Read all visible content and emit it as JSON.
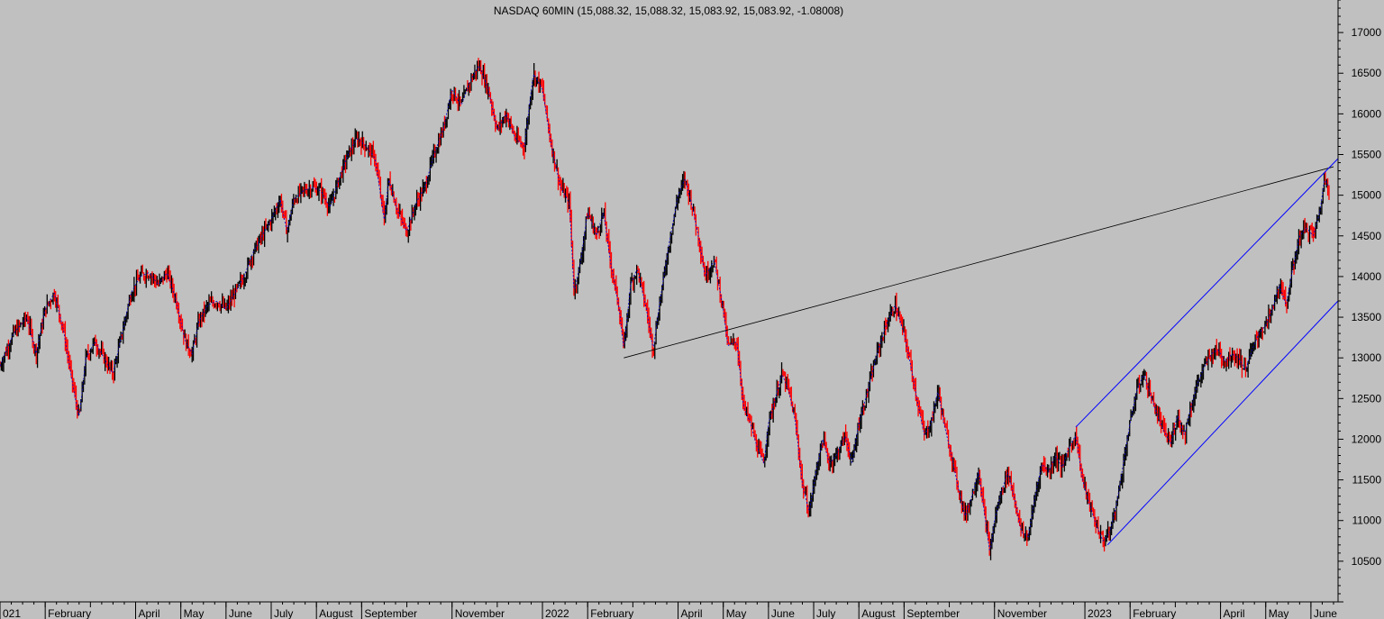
{
  "chart_data": {
    "type": "line",
    "title": "NASDAQ 60MIN (15,088.32, 15,088.32, 15,083.92, 15,083.92, -1.08008)",
    "ylim": [
      10000,
      17400
    ],
    "yticks": [
      10500,
      11000,
      11500,
      12000,
      12500,
      13000,
      13500,
      14000,
      14500,
      15000,
      15500,
      16000,
      16500,
      17000
    ],
    "x_tick_labels": [
      {
        "label": "021",
        "pos": 0.0
      },
      {
        "label": "February",
        "pos": 1.0
      },
      {
        "label": "April",
        "pos": 3.0
      },
      {
        "label": "May",
        "pos": 4.0
      },
      {
        "label": "June",
        "pos": 5.0
      },
      {
        "label": "July",
        "pos": 6.0
      },
      {
        "label": "August",
        "pos": 7.0
      },
      {
        "label": "September",
        "pos": 8.0
      },
      {
        "label": "November",
        "pos": 10.0
      },
      {
        "label": "2022",
        "pos": 12.0
      },
      {
        "label": "February",
        "pos": 13.0
      },
      {
        "label": "April",
        "pos": 15.0
      },
      {
        "label": "May",
        "pos": 16.0
      },
      {
        "label": "June",
        "pos": 17.0
      },
      {
        "label": "July",
        "pos": 18.0
      },
      {
        "label": "August",
        "pos": 19.0
      },
      {
        "label": "September",
        "pos": 20.0
      },
      {
        "label": "November",
        "pos": 22.0
      },
      {
        "label": "2023",
        "pos": 24.0
      },
      {
        "label": "February",
        "pos": 25.0
      },
      {
        "label": "April",
        "pos": 27.0
      },
      {
        "label": "May",
        "pos": 28.0
      },
      {
        "label": "June",
        "pos": 29.0
      }
    ],
    "xlim": [
      0,
      29.6
    ],
    "series": [
      {
        "values": [
          [
            0.0,
            12900
          ],
          [
            0.3,
            13300
          ],
          [
            0.6,
            13500
          ],
          [
            0.8,
            13050
          ],
          [
            1.0,
            13600
          ],
          [
            1.2,
            13800
          ],
          [
            1.4,
            13350
          ],
          [
            1.6,
            12700
          ],
          [
            1.75,
            12250
          ],
          [
            1.9,
            13000
          ],
          [
            2.1,
            13200
          ],
          [
            2.3,
            13000
          ],
          [
            2.5,
            12800
          ],
          [
            2.7,
            13300
          ],
          [
            2.9,
            13800
          ],
          [
            3.1,
            14000
          ],
          [
            3.3,
            14050
          ],
          [
            3.5,
            13900
          ],
          [
            3.7,
            14050
          ],
          [
            3.9,
            13700
          ],
          [
            4.1,
            13200
          ],
          [
            4.25,
            13050
          ],
          [
            4.4,
            13450
          ],
          [
            4.6,
            13650
          ],
          [
            4.8,
            13700
          ],
          [
            5.0,
            13600
          ],
          [
            5.2,
            13800
          ],
          [
            5.4,
            14000
          ],
          [
            5.6,
            14300
          ],
          [
            5.8,
            14500
          ],
          [
            6.0,
            14700
          ],
          [
            6.2,
            14950
          ],
          [
            6.35,
            14550
          ],
          [
            6.5,
            14950
          ],
          [
            6.7,
            15050
          ],
          [
            6.9,
            15100
          ],
          [
            7.1,
            15050
          ],
          [
            7.3,
            14850
          ],
          [
            7.5,
            15200
          ],
          [
            7.7,
            15500
          ],
          [
            7.9,
            15700
          ],
          [
            8.1,
            15600
          ],
          [
            8.3,
            15450
          ],
          [
            8.5,
            14700
          ],
          [
            8.6,
            15200
          ],
          [
            8.8,
            14800
          ],
          [
            9.0,
            14550
          ],
          [
            9.2,
            14900
          ],
          [
            9.4,
            15100
          ],
          [
            9.6,
            15500
          ],
          [
            9.8,
            15800
          ],
          [
            10.0,
            16300
          ],
          [
            10.2,
            16100
          ],
          [
            10.4,
            16400
          ],
          [
            10.6,
            16600
          ],
          [
            10.8,
            16300
          ],
          [
            11.0,
            15800
          ],
          [
            11.2,
            16000
          ],
          [
            11.4,
            15700
          ],
          [
            11.6,
            15600
          ],
          [
            11.8,
            16500
          ],
          [
            12.0,
            16300
          ],
          [
            12.2,
            15600
          ],
          [
            12.4,
            15100
          ],
          [
            12.6,
            14900
          ],
          [
            12.7,
            13800
          ],
          [
            12.85,
            14200
          ],
          [
            13.0,
            14800
          ],
          [
            13.2,
            14500
          ],
          [
            13.35,
            14800
          ],
          [
            13.5,
            14200
          ],
          [
            13.7,
            13600
          ],
          [
            13.8,
            13100
          ],
          [
            13.95,
            13900
          ],
          [
            14.1,
            14100
          ],
          [
            14.3,
            13600
          ],
          [
            14.45,
            13100
          ],
          [
            14.6,
            13700
          ],
          [
            14.8,
            14400
          ],
          [
            15.0,
            15000
          ],
          [
            15.15,
            15200
          ],
          [
            15.3,
            14900
          ],
          [
            15.45,
            14500
          ],
          [
            15.6,
            14000
          ],
          [
            15.8,
            14200
          ],
          [
            16.0,
            13600
          ],
          [
            16.1,
            13150
          ],
          [
            16.3,
            13200
          ],
          [
            16.45,
            12400
          ],
          [
            16.6,
            12200
          ],
          [
            16.75,
            11900
          ],
          [
            16.9,
            11700
          ],
          [
            17.0,
            12200
          ],
          [
            17.15,
            12500
          ],
          [
            17.3,
            12800
          ],
          [
            17.45,
            12600
          ],
          [
            17.6,
            12200
          ],
          [
            17.75,
            11450
          ],
          [
            17.9,
            11100
          ],
          [
            18.05,
            11600
          ],
          [
            18.2,
            12000
          ],
          [
            18.35,
            11700
          ],
          [
            18.5,
            11800
          ],
          [
            18.7,
            12050
          ],
          [
            18.85,
            11700
          ],
          [
            19.0,
            12200
          ],
          [
            19.2,
            12600
          ],
          [
            19.4,
            13050
          ],
          [
            19.6,
            13400
          ],
          [
            19.8,
            13650
          ],
          [
            20.0,
            13300
          ],
          [
            20.15,
            12900
          ],
          [
            20.3,
            12450
          ],
          [
            20.45,
            12050
          ],
          [
            20.6,
            12200
          ],
          [
            20.75,
            12600
          ],
          [
            20.9,
            12150
          ],
          [
            21.05,
            11800
          ],
          [
            21.2,
            11400
          ],
          [
            21.35,
            11050
          ],
          [
            21.5,
            11300
          ],
          [
            21.65,
            11600
          ],
          [
            21.8,
            11000
          ],
          [
            21.9,
            10600
          ],
          [
            22.0,
            11000
          ],
          [
            22.15,
            11350
          ],
          [
            22.3,
            11600
          ],
          [
            22.45,
            11250
          ],
          [
            22.6,
            10850
          ],
          [
            22.75,
            10800
          ],
          [
            22.9,
            11300
          ],
          [
            23.05,
            11700
          ],
          [
            23.2,
            11600
          ],
          [
            23.35,
            11800
          ],
          [
            23.5,
            11650
          ],
          [
            23.65,
            11900
          ],
          [
            23.8,
            12050
          ],
          [
            23.95,
            11500
          ],
          [
            24.1,
            11200
          ],
          [
            24.25,
            10950
          ],
          [
            24.4,
            10750
          ],
          [
            24.55,
            10850
          ],
          [
            24.7,
            11200
          ],
          [
            24.85,
            11700
          ],
          [
            25.0,
            12200
          ],
          [
            25.15,
            12600
          ],
          [
            25.3,
            12800
          ],
          [
            25.45,
            12550
          ],
          [
            25.6,
            12300
          ],
          [
            25.75,
            12100
          ],
          [
            25.9,
            11950
          ],
          [
            26.05,
            12300
          ],
          [
            26.2,
            12050
          ],
          [
            26.35,
            12400
          ],
          [
            26.5,
            12700
          ],
          [
            26.65,
            12900
          ],
          [
            26.8,
            13050
          ],
          [
            26.95,
            13100
          ],
          [
            27.1,
            12950
          ],
          [
            27.25,
            13050
          ],
          [
            27.4,
            13000
          ],
          [
            27.55,
            12850
          ],
          [
            27.7,
            13100
          ],
          [
            27.85,
            13300
          ],
          [
            28.0,
            13400
          ],
          [
            28.15,
            13600
          ],
          [
            28.3,
            13900
          ],
          [
            28.45,
            13650
          ],
          [
            28.6,
            14100
          ],
          [
            28.75,
            14500
          ],
          [
            28.9,
            14600
          ],
          [
            29.05,
            14500
          ],
          [
            29.2,
            14800
          ],
          [
            29.3,
            15200
          ],
          [
            29.4,
            15100
          ]
        ]
      }
    ],
    "trendlines": [
      {
        "color": "#000000",
        "from": [
          13.8,
          13000
        ],
        "to": [
          29.5,
          15350
        ]
      },
      {
        "color": "#0000ff",
        "from": [
          23.8,
          12150
        ],
        "to": [
          29.6,
          15450
        ]
      },
      {
        "color": "#0000ff",
        "from": [
          24.5,
          10700
        ],
        "to": [
          29.6,
          13700
        ]
      }
    ],
    "colors": {
      "background": "#c0c0c0",
      "up": "#000000",
      "down": "#ff0000",
      "ma": "#0000cc",
      "channel": "#0000ff"
    },
    "legend": "none",
    "grid": false
  }
}
